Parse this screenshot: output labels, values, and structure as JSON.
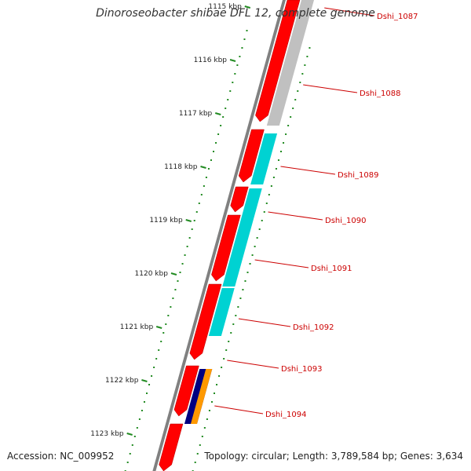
{
  "title": "Dinoroseobacter shibae DFL 12, complete genome",
  "footer": {
    "accession": "Accession: NC_009952",
    "summary": "Topology: circular; Length: 3,789,584 bp; Genes: 3,634"
  },
  "colors": {
    "forward_track": "#ff0000",
    "reverse_track_grey": "#c0c0c0",
    "reverse_track_cyan": "#00d2d2",
    "reverse_track_navy": "#000080",
    "reverse_track_orange": "#ff9900",
    "tick": "#228b22",
    "gene_label": "#cc0000",
    "backbone": "#808080"
  },
  "ruler": {
    "unit": "kbp",
    "ticks": [
      {
        "value": 1115,
        "label": "1115 kbp"
      },
      {
        "value": 1116,
        "label": "1116 kbp"
      },
      {
        "value": 1117,
        "label": "1117 kbp"
      },
      {
        "value": 1118,
        "label": "1118 kbp"
      },
      {
        "value": 1119,
        "label": "1119 kbp"
      },
      {
        "value": 1120,
        "label": "1120 kbp"
      },
      {
        "value": 1121,
        "label": "1121 kbp"
      },
      {
        "value": 1122,
        "label": "1122 kbp"
      },
      {
        "value": 1123,
        "label": "1123 kbp"
      }
    ]
  },
  "genes": [
    {
      "name": "Dshi_1087"
    },
    {
      "name": "Dshi_1088"
    },
    {
      "name": "Dshi_1089"
    },
    {
      "name": "Dshi_1090"
    },
    {
      "name": "Dshi_1091"
    },
    {
      "name": "Dshi_1092"
    },
    {
      "name": "Dshi_1093"
    },
    {
      "name": "Dshi_1094"
    }
  ]
}
